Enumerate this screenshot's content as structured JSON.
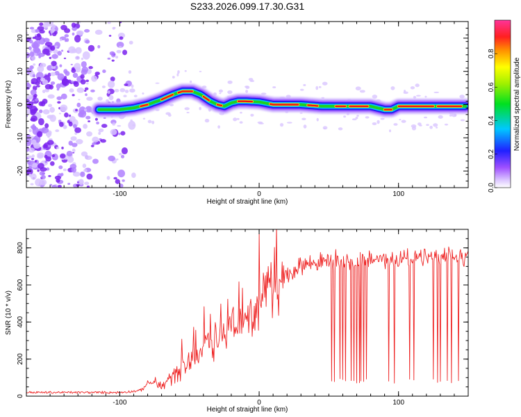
{
  "title": "S233.2026.099.17.30.G31",
  "colors": {
    "snr_line": "#ee2222",
    "axis": "#000000",
    "background": "#ffffff"
  },
  "chart_data": [
    {
      "type": "heatmap",
      "xlabel": "Height of straight line (km)",
      "ylabel": "Frequency (Hz)",
      "xlim": [
        -167,
        150
      ],
      "ylim": [
        -25,
        25
      ],
      "xticks": [
        -100,
        0,
        100
      ],
      "xtick_labels": [
        "-100",
        "0",
        "100"
      ],
      "yticks": [
        -20,
        -10,
        0,
        10,
        20
      ],
      "ytick_labels": [
        "-20",
        "-10",
        "0",
        "10",
        "20"
      ],
      "ridge": {
        "x": [
          -115,
          -100,
          -90,
          -80,
          -70,
          -62,
          -55,
          -48,
          -42,
          -35,
          -30,
          -25,
          -20,
          -15,
          -10,
          0,
          10,
          20,
          30,
          45,
          55,
          65,
          80,
          90,
          95,
          100,
          110,
          120,
          130,
          140,
          148
        ],
        "freq": [
          -1.5,
          -1.5,
          -1.0,
          0.0,
          1.5,
          3.0,
          4.0,
          4.0,
          3.0,
          1.0,
          0.0,
          -0.5,
          0.5,
          1.0,
          1.0,
          0.8,
          0.0,
          0.0,
          0.0,
          -0.5,
          -0.5,
          -0.5,
          -0.5,
          -1.5,
          -1.5,
          -0.5,
          -0.5,
          -0.5,
          -0.5,
          -0.5,
          -0.5
        ]
      },
      "noise_region_x": [
        -167,
        -100
      ],
      "colorbar": {
        "label": "Normalized spectral amplitude",
        "range": [
          0,
          1
        ],
        "ticks": [
          0,
          0.2,
          0.4,
          0.6,
          0.8
        ],
        "tick_labels": [
          "0.0",
          "0.2",
          "0.4",
          "0.6",
          "0.8"
        ]
      }
    },
    {
      "type": "line",
      "xlabel": "Height of straight line (km)",
      "ylabel": "SNR (10 * v/v)",
      "xlim": [
        -167,
        150
      ],
      "ylim": [
        0,
        900
      ],
      "xticks": [
        -100,
        0,
        100
      ],
      "xtick_labels": [
        "-100",
        "0",
        "100"
      ],
      "yticks": [
        0,
        200,
        400,
        600,
        800
      ],
      "ytick_labels": [
        "0",
        "200",
        "400",
        "600",
        "800"
      ],
      "series": [
        {
          "name": "SNR",
          "trend_x": [
            -167,
            -100,
            -85,
            -80,
            -75,
            -70,
            -60,
            -50,
            -40,
            -30,
            -20,
            -10,
            0,
            10,
            20,
            30,
            50,
            70,
            100,
            130,
            150
          ],
          "trend_y": [
            20,
            20,
            30,
            70,
            75,
            50,
            120,
            200,
            270,
            320,
            360,
            400,
            500,
            580,
            650,
            710,
            730,
            740,
            740,
            750,
            750
          ],
          "dropouts_x": [
            52,
            54,
            58,
            60,
            62,
            66,
            68,
            70,
            72,
            73,
            75,
            77,
            93,
            97,
            108,
            111,
            125,
            128,
            130,
            135,
            138,
            143
          ],
          "dropout_min": 70
        }
      ]
    }
  ]
}
